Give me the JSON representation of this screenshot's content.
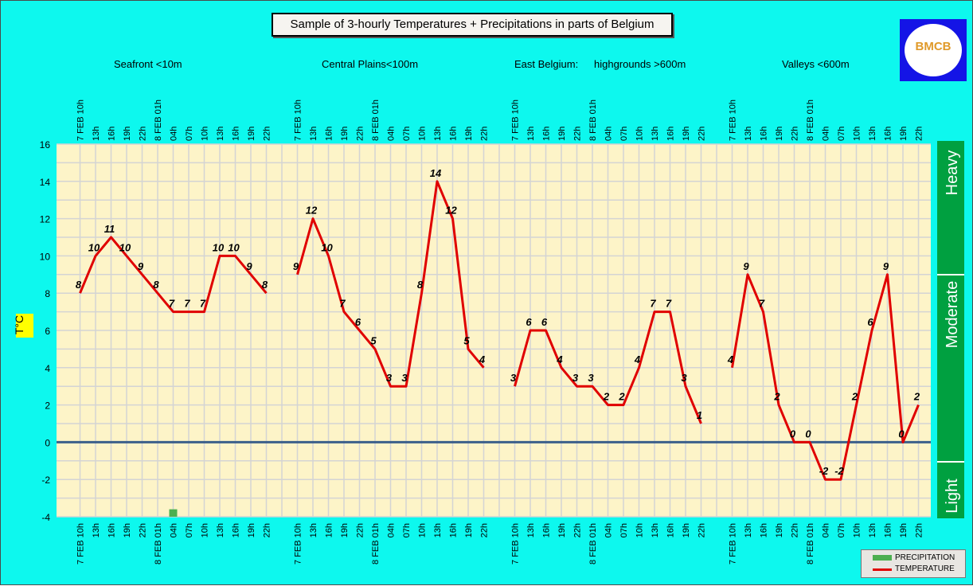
{
  "title": "Sample of 3-hourly Temperatures + Precipitations in parts of Belgium",
  "regions": [
    "Seafront <10m",
    "Central Plains<100m",
    "East Belgium:",
    "highgrounds >600m",
    "Valleys <600m"
  ],
  "logo_text": "BMCB",
  "y_axis_label": "T°C",
  "precip_scale": [
    "Heavy",
    "Moderate",
    "Light"
  ],
  "legend": {
    "precipitation": "PRECIPITATION",
    "temperature": "TEMPERATURE"
  },
  "colors": {
    "background": "#0df8ee",
    "plot_bg": "#fdf4c8",
    "temperature": "#e00000",
    "precipitation": "#4caf50",
    "zero_line": "#3b5f8a",
    "scale_bar": "#00a040"
  },
  "chart_data": {
    "type": "line",
    "title": "Sample of 3-hourly Temperatures + Precipitations in parts of Belgium",
    "ylabel": "T°C",
    "ylim": [
      -4,
      16
    ],
    "y_ticks": [
      -4,
      -2,
      0,
      2,
      4,
      6,
      8,
      10,
      12,
      14,
      16
    ],
    "grid": true,
    "legend_position": "bottom-right",
    "x_labels": [
      "7 FEB 10h",
      "13h",
      "16h",
      "19h",
      "22h",
      "8 FEB 01h",
      "04h",
      "07h",
      "10h",
      "13h",
      "16h",
      "19h",
      "22h",
      "",
      "7 FEB 10h",
      "13h",
      "16h",
      "19h",
      "22h",
      "8 FEB 01h",
      "04h",
      "07h",
      "10h",
      "13h",
      "16h",
      "19h",
      "22h",
      "",
      "7 FEB 10h",
      "13h",
      "16h",
      "19h",
      "22h",
      "8 FEB 01h",
      "04h",
      "07h",
      "10h",
      "13h",
      "16h",
      "19h",
      "22h",
      "",
      "7 FEB 10h",
      "13h",
      "16h",
      "19h",
      "22h",
      "8 FEB 01h",
      "04h",
      "07h",
      "10h",
      "13h",
      "16h",
      "19h",
      "22h"
    ],
    "series": [
      {
        "name": "TEMPERATURE",
        "segments": [
          [
            8,
            10,
            11,
            10,
            9,
            8,
            7,
            7,
            7,
            10,
            10,
            9,
            8
          ],
          [
            9,
            12,
            10,
            7,
            6,
            5,
            3,
            3,
            8,
            14,
            12,
            5,
            4
          ],
          [
            3,
            6,
            6,
            4,
            3,
            3,
            2,
            2,
            4,
            7,
            7,
            3,
            1
          ],
          [
            4,
            9,
            7,
            2,
            0,
            0,
            -2,
            -2,
            2,
            6,
            9,
            0,
            2
          ]
        ]
      },
      {
        "name": "PRECIPITATION",
        "type": "bar",
        "values_at_index": {
          "6": -3.6
        }
      }
    ]
  }
}
